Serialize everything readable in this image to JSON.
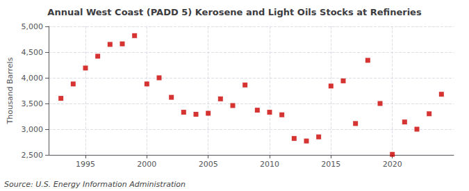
{
  "chart_data": {
    "type": "scatter",
    "title": "Annual West Coast (PADD 5) Kerosene and Light Oils Stocks at Refineries",
    "ylabel": "Thousand Barrels",
    "annotations": [
      "Source: U.S. Energy Information Administration"
    ],
    "x": [
      1993,
      1994,
      1995,
      1996,
      1997,
      1998,
      1999,
      2000,
      2001,
      2002,
      2003,
      2004,
      2005,
      2006,
      2007,
      2008,
      2009,
      2010,
      2011,
      2012,
      2013,
      2014,
      2015,
      2016,
      2017,
      2018,
      2019,
      2020,
      2021,
      2022,
      2023,
      2024
    ],
    "values": [
      3600,
      3880,
      4190,
      4420,
      4650,
      4660,
      4820,
      3880,
      4000,
      3620,
      3330,
      3290,
      3310,
      3590,
      3460,
      3860,
      3370,
      3330,
      3280,
      2820,
      2770,
      2850,
      3840,
      3940,
      3110,
      4340,
      3500,
      2510,
      3140,
      3000,
      3300,
      3680
    ],
    "color": "#cc0000",
    "marker": "square",
    "xlim": [
      1992,
      2025
    ],
    "xticks": [
      1995,
      2000,
      2005,
      2010,
      2015,
      2020
    ],
    "ylim": [
      2500,
      5000
    ],
    "yticks": [
      {
        "value": 2500,
        "label": "2,500"
      },
      {
        "value": 3000,
        "label": "3,000"
      },
      {
        "value": 3500,
        "label": "3,500"
      },
      {
        "value": 4000,
        "label": "4,000"
      },
      {
        "value": 4500,
        "label": "4,500"
      },
      {
        "value": 5000,
        "label": "5,000"
      }
    ],
    "grid": true
  }
}
